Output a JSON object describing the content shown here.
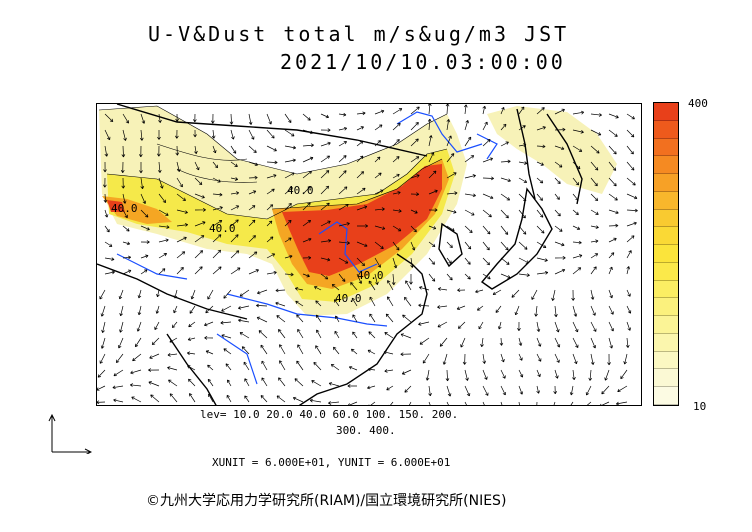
{
  "title": {
    "line1": "U-V&Dust total m/s&ug/m3 JST",
    "line2": "2021/10/10.03:00:00"
  },
  "map": {
    "contour_labels": [
      "40.0",
      "40.0",
      "40.0",
      "40.0",
      "40.0"
    ],
    "colors": {
      "land_line": "#000000",
      "river": "#1a4fff",
      "light": "#f7f2b8",
      "yellow": "#f5e94a",
      "orange": "#f5a623",
      "dark_orange": "#f06a1e",
      "red": "#e8401a"
    }
  },
  "colorbar": {
    "max_label": "400",
    "min_label": "10",
    "colors": [
      "#e8401a",
      "#ee5a1c",
      "#f2701f",
      "#f58a22",
      "#f7a126",
      "#f8b72c",
      "#f9ca30",
      "#fad935",
      "#fbe43b",
      "#fbe94a",
      "#fbee63",
      "#fbf17d",
      "#fbf496",
      "#fbf6ad",
      "#fbf8c2",
      "#fbf9d4",
      "#fcfbe3"
    ]
  },
  "levels": {
    "line1": "lev= 10.0 20.0 40.0 60.0 100. 150. 200.",
    "line2": "300. 400."
  },
  "units": "XUNIT = 6.000E+01, YUNIT = 6.000E+01",
  "copyright": "©九州大学応用力学研究所(RIAM)/国立環境研究所(NIES)"
}
